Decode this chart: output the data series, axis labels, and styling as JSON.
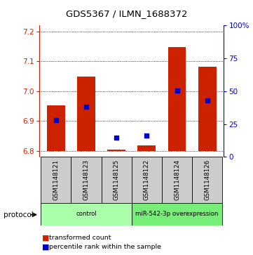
{
  "title": "GDS5367 / ILMN_1688372",
  "samples": [
    "GSM1148121",
    "GSM1148123",
    "GSM1148125",
    "GSM1148122",
    "GSM1148124",
    "GSM1148126"
  ],
  "red_top": [
    6.953,
    7.048,
    6.805,
    6.818,
    7.148,
    7.082
  ],
  "red_bottom": [
    6.8,
    6.8,
    6.8,
    6.8,
    6.8,
    6.8
  ],
  "blue_y_left": [
    6.903,
    6.948,
    6.845,
    6.852,
    7.002,
    6.97
  ],
  "ylim": [
    6.78,
    7.22
  ],
  "yticks_left": [
    6.8,
    6.9,
    7.0,
    7.1,
    7.2
  ],
  "yticks_right_pct": [
    0,
    25,
    50,
    75,
    100
  ],
  "bar_color": "#CC2200",
  "blue_color": "#0000CC",
  "control_color": "#AAFFAA",
  "overexp_color": "#77EE77",
  "bg_color": "#FFFFFF",
  "label_bg": "#CCCCCC",
  "bar_width": 0.6,
  "group_info": [
    {
      "start": 0,
      "end": 2,
      "label": "control"
    },
    {
      "start": 3,
      "end": 5,
      "label": "miR-542-3p overexpression"
    }
  ]
}
